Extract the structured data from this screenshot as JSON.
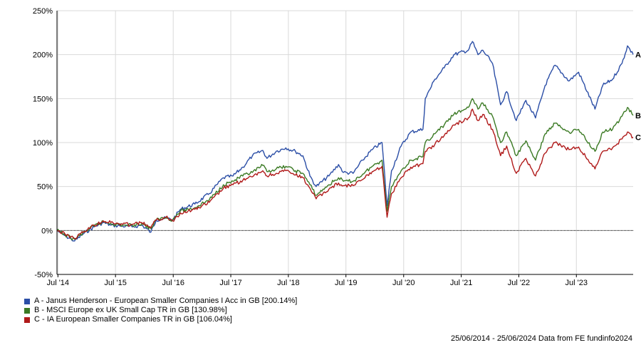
{
  "chart_data": {
    "type": "line",
    "x_range": [
      "2014-06-25",
      "2024-06-25"
    ],
    "ylim": [
      -50,
      250
    ],
    "y_ticks": [
      -50,
      0,
      50,
      100,
      150,
      200,
      250
    ],
    "y_tick_labels": [
      "-50%",
      "0%",
      "50%",
      "100%",
      "150%",
      "200%",
      "250%"
    ],
    "x_ticks": [
      "2014-07-01",
      "2015-07-01",
      "2016-07-01",
      "2017-07-01",
      "2018-07-01",
      "2019-07-01",
      "2020-07-01",
      "2021-07-01",
      "2022-07-01",
      "2023-07-01"
    ],
    "x_tick_labels": [
      "Jul '14",
      "Jul '15",
      "Jul '16",
      "Jul '17",
      "Jul '18",
      "Jul '19",
      "Jul '20",
      "Jul '21",
      "Jul '22",
      "Jul '23"
    ],
    "grid": true,
    "zero_line": "dotted",
    "series": [
      {
        "end_label": "A",
        "legend_text": "A - Janus Henderson - European Smaller Companies I Acc in GB [200.14%]",
        "color": "#2b4ea6",
        "points": [
          [
            "2014-06-25",
            0
          ],
          [
            "2014-08-15",
            -6
          ],
          [
            "2014-10-15",
            -12
          ],
          [
            "2014-12-15",
            -3
          ],
          [
            "2015-02-15",
            4
          ],
          [
            "2015-04-15",
            9
          ],
          [
            "2015-06-01",
            6
          ],
          [
            "2015-08-15",
            5
          ],
          [
            "2015-10-15",
            4
          ],
          [
            "2015-12-15",
            6
          ],
          [
            "2016-02-10",
            -2
          ],
          [
            "2016-03-15",
            12
          ],
          [
            "2016-05-15",
            14
          ],
          [
            "2016-06-27",
            12
          ],
          [
            "2016-08-15",
            24
          ],
          [
            "2016-11-15",
            30
          ],
          [
            "2017-02-15",
            42
          ],
          [
            "2017-05-15",
            60
          ],
          [
            "2017-07-15",
            62
          ],
          [
            "2017-09-15",
            72
          ],
          [
            "2017-11-15",
            85
          ],
          [
            "2018-01-20",
            91
          ],
          [
            "2018-02-15",
            82
          ],
          [
            "2018-04-15",
            90
          ],
          [
            "2018-06-15",
            94
          ],
          [
            "2018-08-15",
            90
          ],
          [
            "2018-10-01",
            85
          ],
          [
            "2018-11-15",
            62
          ],
          [
            "2018-12-24",
            50
          ],
          [
            "2019-03-15",
            62
          ],
          [
            "2019-05-15",
            75
          ],
          [
            "2019-06-15",
            66
          ],
          [
            "2019-08-15",
            65
          ],
          [
            "2019-10-15",
            80
          ],
          [
            "2019-12-15",
            92
          ],
          [
            "2020-02-15",
            100
          ],
          [
            "2020-03-18",
            28
          ],
          [
            "2020-04-15",
            68
          ],
          [
            "2020-06-15",
            96
          ],
          [
            "2020-08-15",
            112
          ],
          [
            "2020-10-31",
            115
          ],
          [
            "2020-11-15",
            150
          ],
          [
            "2021-01-15",
            172
          ],
          [
            "2021-03-15",
            185
          ],
          [
            "2021-05-15",
            200
          ],
          [
            "2021-08-15",
            205
          ],
          [
            "2021-09-10",
            215
          ],
          [
            "2021-10-15",
            200
          ],
          [
            "2021-11-15",
            205
          ],
          [
            "2022-01-15",
            190
          ],
          [
            "2022-03-07",
            143
          ],
          [
            "2022-04-15",
            158
          ],
          [
            "2022-06-15",
            125
          ],
          [
            "2022-08-15",
            148
          ],
          [
            "2022-10-15",
            128
          ],
          [
            "2022-12-15",
            165
          ],
          [
            "2023-02-15",
            188
          ],
          [
            "2023-05-15",
            170
          ],
          [
            "2023-07-15",
            180
          ],
          [
            "2023-10-27",
            138
          ],
          [
            "2023-12-15",
            165
          ],
          [
            "2024-02-15",
            172
          ],
          [
            "2024-04-15",
            190
          ],
          [
            "2024-05-20",
            210
          ],
          [
            "2024-06-25",
            200.14
          ]
        ]
      },
      {
        "end_label": "B",
        "legend_text": "B - MSCI Europe ex UK Small Cap TR in GB [130.98%]",
        "color": "#3b7a24",
        "points": [
          [
            "2014-06-25",
            0
          ],
          [
            "2014-08-15",
            -5
          ],
          [
            "2014-10-15",
            -10
          ],
          [
            "2014-12-15",
            -2
          ],
          [
            "2015-02-15",
            5
          ],
          [
            "2015-04-15",
            10
          ],
          [
            "2015-06-01",
            8
          ],
          [
            "2015-08-15",
            6
          ],
          [
            "2015-10-15",
            6
          ],
          [
            "2015-12-15",
            8
          ],
          [
            "2016-02-10",
            2
          ],
          [
            "2016-03-15",
            12
          ],
          [
            "2016-05-15",
            15
          ],
          [
            "2016-06-27",
            12
          ],
          [
            "2016-08-15",
            22
          ],
          [
            "2016-11-15",
            26
          ],
          [
            "2017-02-15",
            35
          ],
          [
            "2017-05-15",
            52
          ],
          [
            "2017-07-15",
            56
          ],
          [
            "2017-09-15",
            62
          ],
          [
            "2017-11-15",
            66
          ],
          [
            "2018-01-20",
            74
          ],
          [
            "2018-02-15",
            67
          ],
          [
            "2018-04-15",
            70
          ],
          [
            "2018-06-15",
            73
          ],
          [
            "2018-08-15",
            68
          ],
          [
            "2018-10-01",
            65
          ],
          [
            "2018-11-15",
            52
          ],
          [
            "2018-12-24",
            40
          ],
          [
            "2019-03-15",
            52
          ],
          [
            "2019-05-15",
            60
          ],
          [
            "2019-06-15",
            56
          ],
          [
            "2019-08-15",
            56
          ],
          [
            "2019-10-15",
            64
          ],
          [
            "2019-12-15",
            73
          ],
          [
            "2020-02-15",
            80
          ],
          [
            "2020-03-18",
            22
          ],
          [
            "2020-04-15",
            50
          ],
          [
            "2020-06-15",
            68
          ],
          [
            "2020-08-15",
            80
          ],
          [
            "2020-10-31",
            84
          ],
          [
            "2020-11-15",
            100
          ],
          [
            "2021-01-15",
            110
          ],
          [
            "2021-03-15",
            120
          ],
          [
            "2021-05-15",
            132
          ],
          [
            "2021-08-15",
            140
          ],
          [
            "2021-09-10",
            150
          ],
          [
            "2021-10-15",
            138
          ],
          [
            "2021-11-15",
            145
          ],
          [
            "2022-01-15",
            130
          ],
          [
            "2022-03-07",
            100
          ],
          [
            "2022-04-15",
            112
          ],
          [
            "2022-06-15",
            85
          ],
          [
            "2022-08-15",
            102
          ],
          [
            "2022-10-15",
            80
          ],
          [
            "2022-12-15",
            110
          ],
          [
            "2023-02-15",
            122
          ],
          [
            "2023-05-15",
            112
          ],
          [
            "2023-07-15",
            115
          ],
          [
            "2023-10-27",
            90
          ],
          [
            "2023-12-15",
            112
          ],
          [
            "2024-02-15",
            115
          ],
          [
            "2024-04-15",
            130
          ],
          [
            "2024-05-20",
            140
          ],
          [
            "2024-06-25",
            130.98
          ]
        ]
      },
      {
        "end_label": "C",
        "legend_text": "C - IA European Smaller Companies TR in GB [106.04%]",
        "color": "#b01a1a",
        "points": [
          [
            "2014-06-25",
            0
          ],
          [
            "2014-08-15",
            -4
          ],
          [
            "2014-10-15",
            -9
          ],
          [
            "2014-12-15",
            -1
          ],
          [
            "2015-02-15",
            6
          ],
          [
            "2015-04-15",
            11
          ],
          [
            "2015-06-01",
            9
          ],
          [
            "2015-08-15",
            7
          ],
          [
            "2015-10-15",
            7
          ],
          [
            "2015-12-15",
            9
          ],
          [
            "2016-02-10",
            3
          ],
          [
            "2016-03-15",
            12
          ],
          [
            "2016-05-15",
            15
          ],
          [
            "2016-06-27",
            11
          ],
          [
            "2016-08-15",
            20
          ],
          [
            "2016-11-15",
            24
          ],
          [
            "2017-02-15",
            32
          ],
          [
            "2017-05-15",
            48
          ],
          [
            "2017-07-15",
            52
          ],
          [
            "2017-09-15",
            57
          ],
          [
            "2017-11-15",
            61
          ],
          [
            "2018-01-20",
            68
          ],
          [
            "2018-02-15",
            62
          ],
          [
            "2018-04-15",
            65
          ],
          [
            "2018-06-15",
            68
          ],
          [
            "2018-08-15",
            63
          ],
          [
            "2018-10-01",
            60
          ],
          [
            "2018-11-15",
            48
          ],
          [
            "2018-12-24",
            36
          ],
          [
            "2019-03-15",
            47
          ],
          [
            "2019-05-15",
            54
          ],
          [
            "2019-06-15",
            51
          ],
          [
            "2019-08-15",
            51
          ],
          [
            "2019-10-15",
            58
          ],
          [
            "2019-12-15",
            67
          ],
          [
            "2020-02-15",
            73
          ],
          [
            "2020-03-18",
            15
          ],
          [
            "2020-04-15",
            42
          ],
          [
            "2020-06-15",
            60
          ],
          [
            "2020-08-15",
            72
          ],
          [
            "2020-10-31",
            76
          ],
          [
            "2020-11-15",
            90
          ],
          [
            "2021-01-15",
            98
          ],
          [
            "2021-03-15",
            108
          ],
          [
            "2021-05-15",
            120
          ],
          [
            "2021-08-15",
            128
          ],
          [
            "2021-09-10",
            138
          ],
          [
            "2021-10-15",
            125
          ],
          [
            "2021-11-15",
            132
          ],
          [
            "2022-01-15",
            115
          ],
          [
            "2022-03-07",
            85
          ],
          [
            "2022-04-15",
            96
          ],
          [
            "2022-06-15",
            65
          ],
          [
            "2022-08-15",
            82
          ],
          [
            "2022-10-15",
            62
          ],
          [
            "2022-12-15",
            88
          ],
          [
            "2023-02-15",
            100
          ],
          [
            "2023-05-15",
            92
          ],
          [
            "2023-07-15",
            95
          ],
          [
            "2023-10-27",
            70
          ],
          [
            "2023-12-15",
            90
          ],
          [
            "2024-02-15",
            94
          ],
          [
            "2024-04-15",
            104
          ],
          [
            "2024-05-20",
            112
          ],
          [
            "2024-06-25",
            106.04
          ]
        ]
      }
    ]
  },
  "footer": {
    "text": "25/06/2014 - 25/06/2024 Data from FE fundinfo2024"
  }
}
